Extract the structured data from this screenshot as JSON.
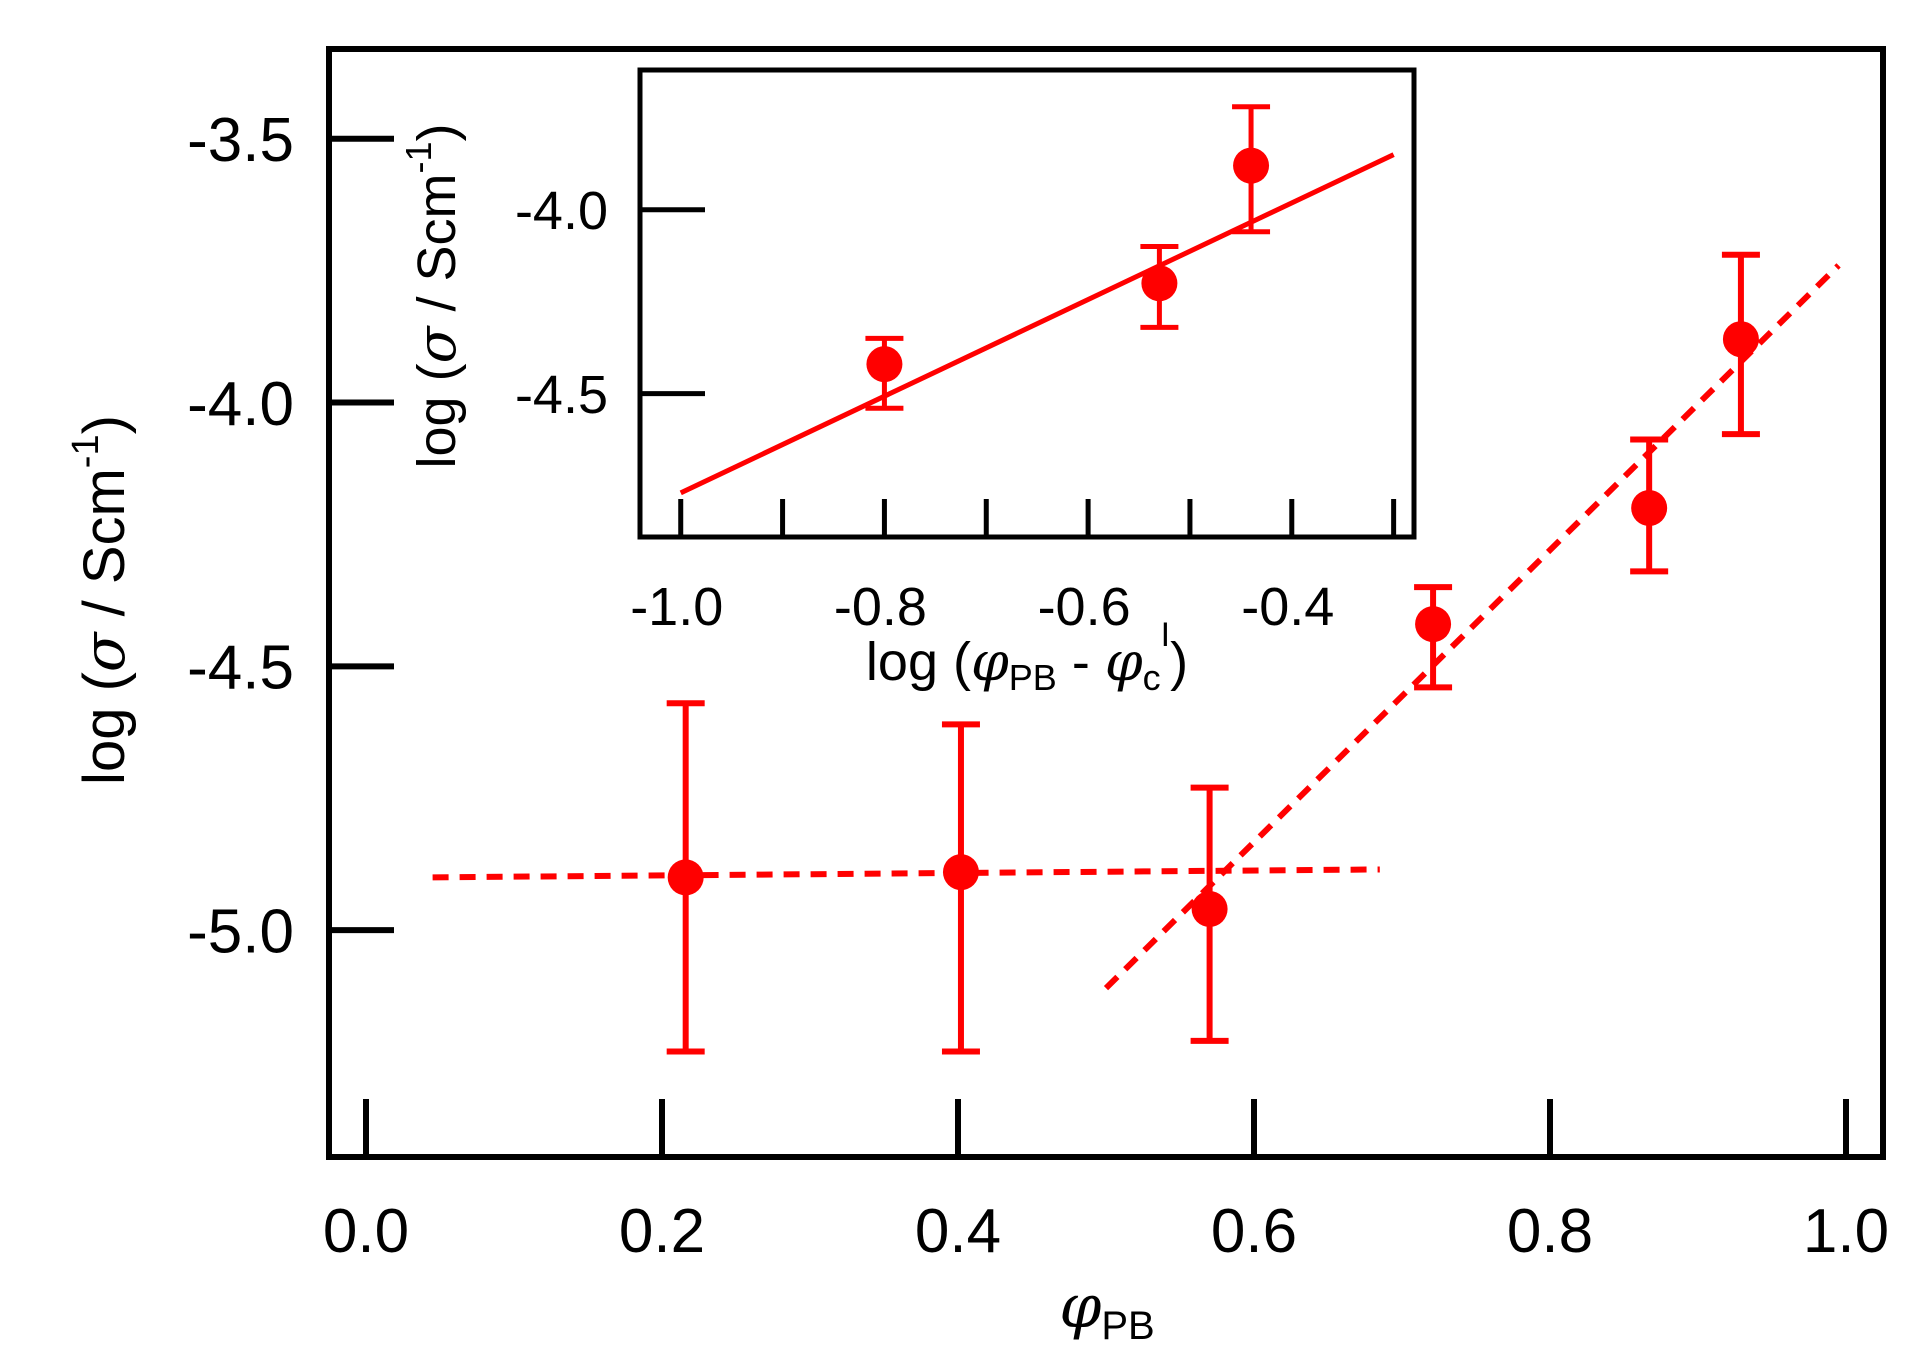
{
  "colors": {
    "series": "#ff0000",
    "axis": "#000000"
  },
  "chart_data": [
    {
      "name": "main",
      "type": "scatter",
      "xlabel": {
        "symbol": "φ",
        "sub": "PB"
      },
      "ylabel": {
        "pre": "log (",
        "symbol": "σ",
        "unit": " / Scm",
        "sup": "-1",
        "post": ")"
      },
      "xlim": [
        -0.025,
        1.025
      ],
      "ylim": [
        -5.43,
        -3.33
      ],
      "x_ticks": [
        0.0,
        0.2,
        0.4,
        0.6,
        0.8,
        1.0
      ],
      "x_tick_labels": [
        "0.0",
        "0.2",
        "0.4",
        "0.6",
        "0.8",
        "1.0"
      ],
      "y_ticks": [
        -3.5,
        -4.0,
        -4.5,
        -5.0
      ],
      "y_tick_labels": [
        "-3.5",
        "-4.0",
        "-4.5",
        "-5.0"
      ],
      "points": [
        {
          "x": 0.216,
          "y": -4.9,
          "err_low": -5.23,
          "err_high": -4.57
        },
        {
          "x": 0.402,
          "y": -4.89,
          "err_low": -5.23,
          "err_high": -4.61
        },
        {
          "x": 0.57,
          "y": -4.96,
          "err_low": -5.21,
          "err_high": -4.73
        },
        {
          "x": 0.721,
          "y": -4.42,
          "err_low": -4.54,
          "err_high": -4.35
        },
        {
          "x": 0.867,
          "y": -4.2,
          "err_low": -4.32,
          "err_high": -4.07
        },
        {
          "x": 0.929,
          "y": -3.88,
          "err_low": -4.06,
          "err_high": -3.72
        }
      ],
      "fit_lines": [
        {
          "style": "dashed",
          "x": [
            0.045,
            0.685
          ],
          "y": [
            -4.9,
            -4.885
          ]
        },
        {
          "style": "dashed",
          "x": [
            0.5,
            0.995
          ],
          "y": [
            -5.11,
            -3.74
          ]
        }
      ]
    },
    {
      "name": "inset",
      "type": "scatter",
      "xlabel": {
        "pre": "log (",
        "symbol1": "φ",
        "sub1": "PB",
        "mid": " - ",
        "symbol2": "φ",
        "sub2": "c",
        "sup2": "I",
        "post": ")"
      },
      "ylabel": {
        "pre": "log (",
        "symbol": "σ",
        "unit": " / Scm",
        "sup": "-1",
        "post": ")"
      },
      "xlim": [
        -1.04,
        -0.28
      ],
      "ylim": [
        -4.89,
        -3.62
      ],
      "x_ticks": [
        -1.0,
        -0.9,
        -0.8,
        -0.7,
        -0.6,
        -0.5,
        -0.4,
        -0.3
      ],
      "x_tick_labels": [
        "-1.0",
        "-0.8",
        "-0.6",
        "-0.4"
      ],
      "x_labeled_ticks": [
        -1.0,
        -0.8,
        -0.6,
        -0.4
      ],
      "y_ticks": [
        -4.0,
        -4.5
      ],
      "y_tick_labels": [
        "-4.0",
        "-4.5"
      ],
      "points": [
        {
          "x": -0.8,
          "y": -4.42,
          "err_low": -4.54,
          "err_high": -4.35
        },
        {
          "x": -0.53,
          "y": -4.2,
          "err_low": -4.32,
          "err_high": -4.1
        },
        {
          "x": -0.44,
          "y": -3.88,
          "err_low": -4.06,
          "err_high": -3.72
        }
      ],
      "fit_lines": [
        {
          "style": "solid",
          "x": [
            -1.0,
            -0.3
          ],
          "y": [
            -4.77,
            -3.85
          ]
        }
      ]
    }
  ]
}
